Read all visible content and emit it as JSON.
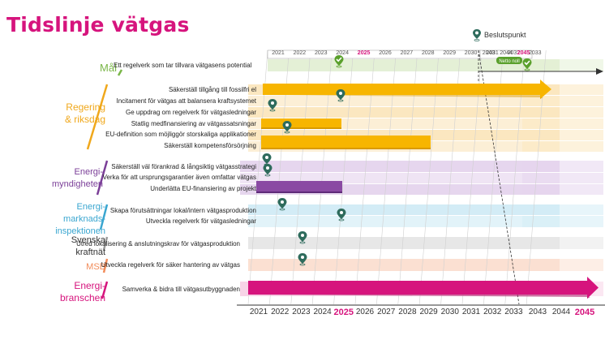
{
  "title": "Tidslinje vätgas",
  "legend": {
    "label": "Beslutspunkt",
    "icon": "decision-pin-icon"
  },
  "colors": {
    "title": "#d6147d",
    "pin": "#2e6b5c",
    "mal": "#7ab648",
    "regering": "#f0a81c",
    "energimyndigheten": "#7b3f98",
    "marknad": "#3aa6d0",
    "svk": "#9a9a9a",
    "msb": "#f28c5a",
    "branschen": "#d6147d"
  },
  "years_top": [
    "2021",
    "2022",
    "2023",
    "2024",
    "2025",
    "2026",
    "2027",
    "2028",
    "2029",
    "2030",
    "2031",
    "2032",
    "2033",
    "2043",
    "2044",
    "2045"
  ],
  "years_bottom": [
    "2021",
    "2022",
    "2023",
    "2024",
    "2025",
    "2026",
    "2027",
    "2028",
    "2029",
    "2030",
    "2031",
    "2032",
    "2033",
    "2043",
    "2044",
    "2045"
  ],
  "netto_noll": "Netto noll",
  "categories": [
    {
      "key": "mal",
      "label": "Mål",
      "activities": [
        "Ett regelverk som tar tillvara vätgasens potential"
      ]
    },
    {
      "key": "regering",
      "label": "Regering\n& riksdag",
      "activities": [
        "Säkerställ tillgång till fossilfri el",
        "Incitament för vätgas att balansera kraftsystemet",
        "Ge uppdrag om regelverk för vätgasledningar",
        "Statlig medfinansiering av vätgassatsningar",
        "EU-definition som möjliggör storskaliga applikationer",
        "Säkerställ kompetensförsörjning"
      ]
    },
    {
      "key": "energimyndigheten",
      "label": "Energi-\nmyndigheten",
      "activities": [
        "Säkerställ väl förankrad & långsiktig vätgasstrategi",
        "Verka för att ursprungsgarantier även omfattar vätgas",
        "Underlätta EU-finansiering av projekt"
      ]
    },
    {
      "key": "marknad",
      "label": "Energi-\nmarknads-\ninspektionen",
      "activities": [
        "Skapa förutsättningar lokal/intern vätgasproduktion",
        "Utveckla regelverk för vätgasledningar"
      ]
    },
    {
      "key": "svk",
      "label": "Svenska\nkraftnät",
      "activities": [
        "Utred lokalisering & anslutningskrav för vätgasproduktion"
      ]
    },
    {
      "key": "msb",
      "label": "MSB",
      "activities": [
        "Utveckla regelverk för säker hantering av vätgas"
      ]
    },
    {
      "key": "branschen",
      "label": "Energi-\nbranschen",
      "activities": [
        "Samverka & bidra till vätgasutbyggnaden"
      ]
    }
  ]
}
